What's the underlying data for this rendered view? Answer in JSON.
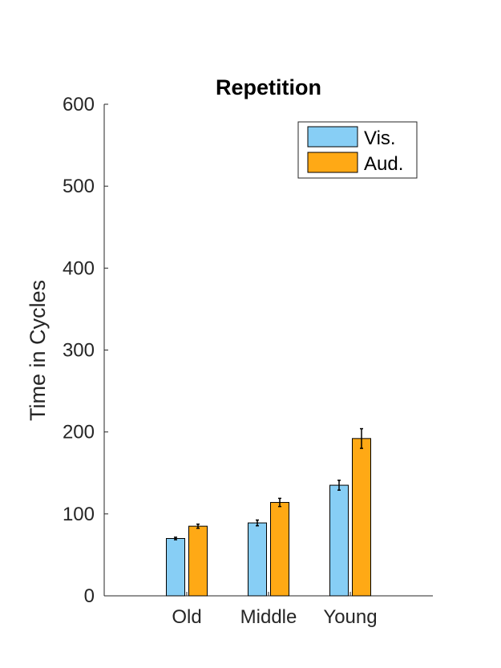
{
  "chart_data": {
    "type": "bar",
    "title": "Repetition",
    "xlabel": "",
    "ylabel": "Time in Cycles",
    "categories": [
      "Old",
      "Middle",
      "Young"
    ],
    "ylim": [
      0,
      600
    ],
    "yticks": [
      0,
      100,
      200,
      300,
      400,
      500,
      600
    ],
    "grid": false,
    "legend_position": "top-right",
    "series": [
      {
        "name": "Vis.",
        "color": "#87CEF5",
        "values": [
          70,
          89,
          135
        ],
        "errors": [
          1.5,
          3.5,
          6
        ]
      },
      {
        "name": "Aud.",
        "color": "#FFA915",
        "values": [
          85,
          114,
          192
        ],
        "errors": [
          2.5,
          5,
          12
        ]
      }
    ]
  }
}
